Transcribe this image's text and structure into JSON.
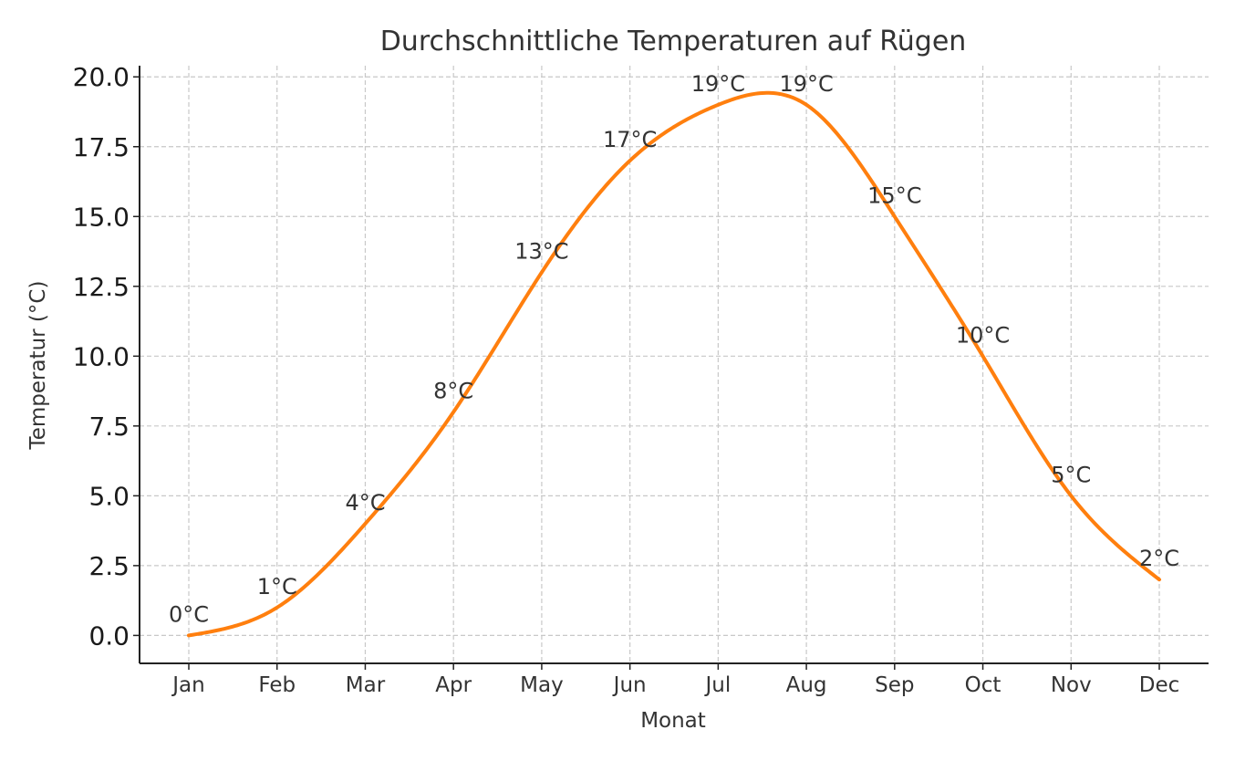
{
  "chart_data": {
    "type": "line",
    "title": "Durchschnittliche Temperaturen auf Rügen",
    "xlabel": "Monat",
    "ylabel": "Temperatur (°C)",
    "categories": [
      "Jan",
      "Feb",
      "Mar",
      "Apr",
      "May",
      "Jun",
      "Jul",
      "Aug",
      "Sep",
      "Oct",
      "Nov",
      "Dec"
    ],
    "values": [
      0,
      1,
      4,
      8,
      13,
      17,
      19,
      19,
      15,
      10,
      5,
      2
    ],
    "data_labels": [
      "0°C",
      "1°C",
      "4°C",
      "8°C",
      "13°C",
      "17°C",
      "19°C",
      "19°C",
      "15°C",
      "10°C",
      "5°C",
      "2°C"
    ],
    "ylim": [
      -1,
      20.4
    ],
    "yticks": [
      0,
      2.5,
      5,
      7.5,
      10,
      12.5,
      15,
      17.5,
      20
    ],
    "ytick_labels": [
      "0.0",
      "2.5",
      "5.0",
      "7.5",
      "10.0",
      "12.5",
      "15.0",
      "17.5",
      "20.0"
    ],
    "grid": true,
    "smooth": true,
    "line_color": "#ff7f0e"
  }
}
